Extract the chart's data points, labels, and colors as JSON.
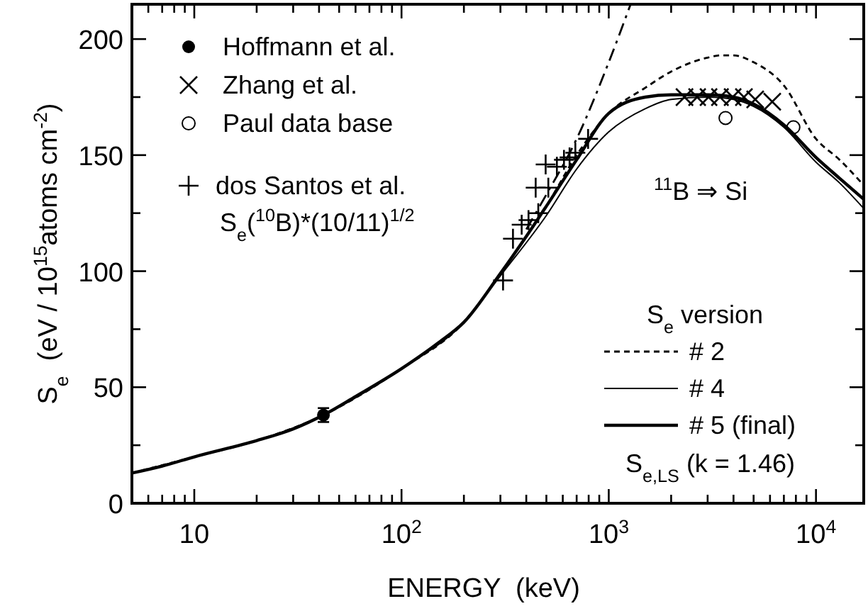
{
  "chart_data": {
    "type": "line",
    "xlabel": "ENERGY  (keV)",
    "ylabel": "S$_{e}$  (eV / 10$^{15}$atoms cm$^{-2}$)",
    "log": "x",
    "grid": false,
    "legend": "top left",
    "legend_title": "S$_{e}$ version",
    "xlim": [
      5,
      17000
    ],
    "ylim": [
      0,
      215
    ],
    "xticks": [
      {
        "value": 6,
        "label": null
      },
      {
        "value": 7,
        "label": null
      },
      {
        "value": 8,
        "label": null
      },
      {
        "value": 9,
        "label": null
      },
      10,
      {
        "value": 20,
        "label": null
      },
      {
        "value": 30,
        "label": null
      },
      {
        "value": 40,
        "label": null
      },
      {
        "value": 50,
        "label": null
      },
      {
        "value": 60,
        "label": null
      },
      {
        "value": 70,
        "label": null
      },
      {
        "value": 80,
        "label": null
      },
      {
        "value": 90,
        "label": null
      },
      {
        "value": 100,
        "label": "10$^{2}$"
      },
      {
        "value": 200,
        "label": null
      },
      {
        "value": 300,
        "label": null
      },
      {
        "value": 400,
        "label": null
      },
      {
        "value": 500,
        "label": null
      },
      {
        "value": 600,
        "label": null
      },
      {
        "value": 700,
        "label": null
      },
      {
        "value": 800,
        "label": null
      },
      {
        "value": 900,
        "label": null
      },
      {
        "value": 1000,
        "label": "10$^{3}$"
      },
      {
        "value": 2000,
        "label": null
      },
      {
        "value": 3000,
        "label": null
      },
      {
        "value": 4000,
        "label": null
      },
      {
        "value": 5000,
        "label": null
      },
      {
        "value": 6000,
        "label": null
      },
      {
        "value": 7000,
        "label": null
      },
      {
        "value": 8000,
        "label": null
      },
      {
        "value": 9000,
        "label": null
      },
      {
        "value": 10000,
        "label": "10$^{4}$"
      }
    ],
    "yticks": [
      0,
      {
        "value": 25,
        "label": null
      },
      50,
      {
        "value": 75,
        "label": null
      },
      100,
      {
        "value": 125,
        "label": null
      },
      150,
      {
        "value": 175,
        "label": null
      },
      200
    ],
    "annotations": [
      "S$_{e}$($^{10}$B)*(10/11)$^{1/2}$",
      "$^{11}$B ⇒ Si",
      "S$_{e,LS}$ (k = 1.46)"
    ],
    "series": [
      {
        "name": "Hoffmann et al.",
        "type": "scatter",
        "marker": "circle",
        "color": "#000000",
        "x": [
          42
        ],
        "values": [
          38
        ],
        "errors": [
          3
        ]
      },
      {
        "name": "Zhang et al.",
        "type": "scatter",
        "marker": "x",
        "color": "#000000",
        "x": [
          2320,
          2670,
          3030,
          3440,
          3960,
          4490,
          5090,
          6150
        ],
        "values": [
          175,
          175,
          175,
          175,
          175,
          175,
          174,
          173
        ]
      },
      {
        "name": "Paul data base",
        "type": "scatter",
        "marker": "circle-open",
        "color": "#000000",
        "x": [
          3660,
          7780
        ],
        "values": [
          166,
          162
        ]
      },
      {
        "name": "dos Santos et al.",
        "type": "scatter",
        "marker": "cross",
        "color": "#000000",
        "x": [
          309,
          345,
          380,
          410,
          444,
          457,
          496,
          511,
          562,
          608,
          647,
          690,
          795
        ],
        "values": [
          96,
          114,
          120,
          122,
          136,
          125,
          146,
          136,
          145,
          148,
          149,
          151,
          157
        ]
      },
      {
        "name": "# 2",
        "line_style": "dashed",
        "color": "#000000",
        "x": [
          5,
          10,
          20,
          42,
          100,
          200,
          300,
          500,
          700,
          1000,
          1500,
          2000,
          3000,
          3500,
          4000,
          5000,
          7000,
          10000,
          13000,
          17000
        ],
        "values": [
          13,
          20,
          27,
          38,
          58,
          78,
          99,
          128,
          150,
          168,
          179,
          186,
          192,
          193,
          193,
          190,
          180,
          157,
          148,
          137
        ]
      },
      {
        "name": "# 4",
        "line_style": "solid",
        "color": "#000000",
        "x": [
          5,
          10,
          20,
          42,
          100,
          200,
          300,
          500,
          700,
          1000,
          1500,
          2000,
          3000,
          4000,
          5000,
          7000,
          10000,
          13000,
          17000
        ],
        "values": [
          13,
          20,
          27,
          38,
          58,
          78,
          98,
          124,
          144,
          160,
          170,
          174,
          175,
          174,
          171,
          162,
          147,
          138,
          127
        ]
      },
      {
        "name": "# 5 (final)",
        "line_style": "solid",
        "color": "#000000",
        "x": [
          5,
          7,
          10,
          20,
          30,
          42,
          60,
          100,
          150,
          200,
          300,
          400,
          500,
          700,
          1000,
          1500,
          2000,
          3000,
          4000,
          5000,
          7000,
          10000,
          13000,
          17000
        ],
        "values": [
          13,
          16,
          20,
          27,
          32,
          38,
          46,
          58,
          69,
          78,
          99,
          115,
          128,
          148,
          168,
          175,
          176,
          176,
          175,
          172,
          163,
          149,
          140,
          131
        ]
      },
      {
        "line_style": "dashdot",
        "color": "#000000",
        "x": [
          400,
          500,
          700,
          1000,
          1275
        ],
        "values": [
          118,
          133,
          157,
          190,
          215
        ]
      }
    ]
  }
}
